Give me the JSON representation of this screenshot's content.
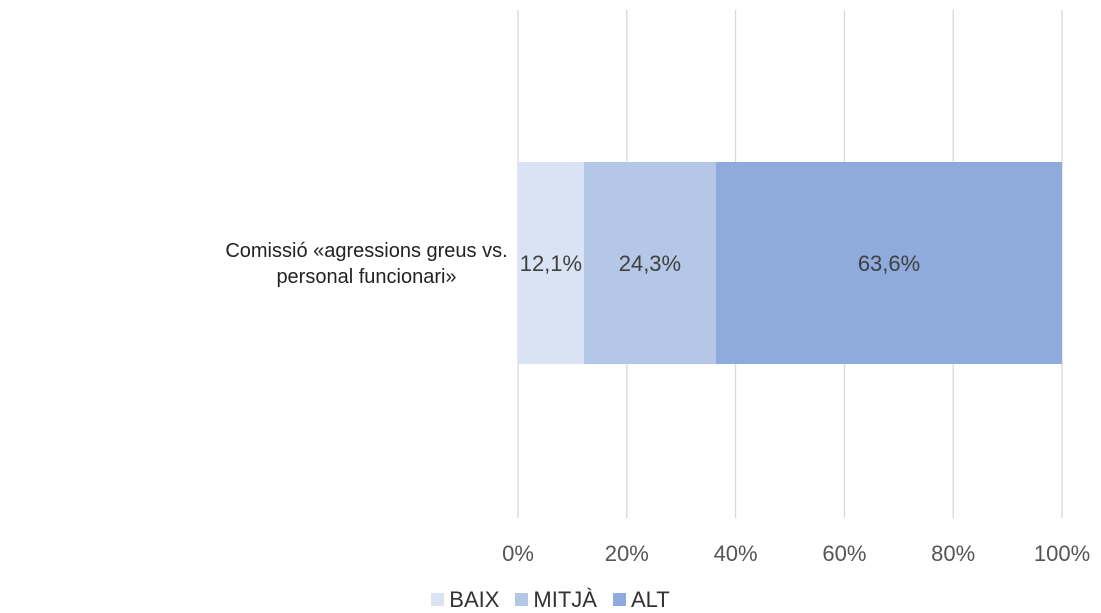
{
  "chart_data": {
    "type": "bar",
    "orientation": "horizontal",
    "stacked": true,
    "categories": [
      "Comissió «agressions greus vs. personal funcionari»"
    ],
    "series": [
      {
        "name": "BAIX",
        "values": [
          12.1
        ],
        "label": "12,1%",
        "color": "#dae3f3"
      },
      {
        "name": "MITJÀ",
        "values": [
          24.3
        ],
        "label": "24,3%",
        "color": "#b4c7e7"
      },
      {
        "name": "ALT",
        "values": [
          63.6
        ],
        "label": "63,6%",
        "color": "#8faadc"
      }
    ],
    "xlim": [
      0,
      100
    ],
    "xticks": [
      "0%",
      "20%",
      "40%",
      "60%",
      "80%",
      "100%"
    ],
    "grid": "vertical",
    "gridColor": "#d9d9d9",
    "legend_position": "bottom",
    "title": "",
    "xlabel": "",
    "ylabel": ""
  }
}
